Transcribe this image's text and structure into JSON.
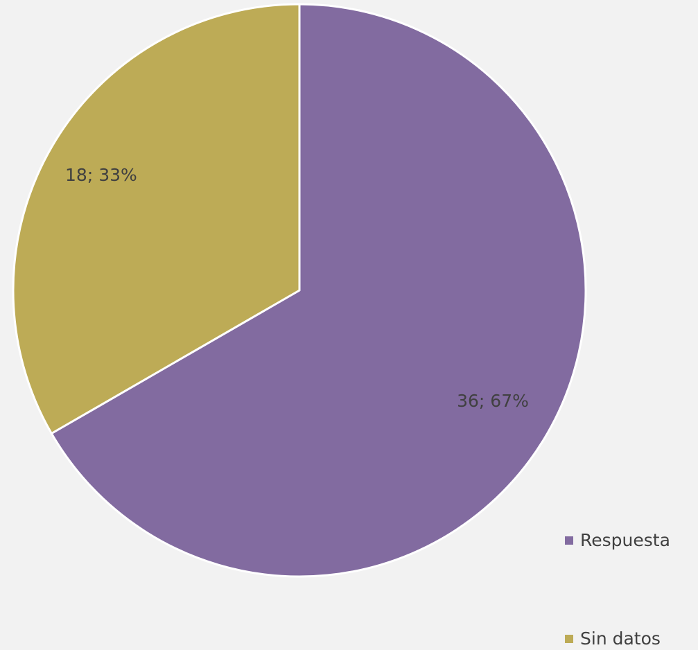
{
  "chart_data": {
    "type": "pie",
    "title": "",
    "categories": [
      "Respuesta",
      "Sin datos"
    ],
    "values": [
      36,
      18
    ],
    "percentages": [
      67,
      33
    ],
    "data_labels": [
      "36; 67%",
      "18; 33%"
    ],
    "colors": [
      "#826ba0",
      "#bdab56"
    ],
    "start_angle_deg": 0,
    "direction": "clockwise",
    "legend_position": "right-bottom"
  },
  "legend": {
    "items": [
      {
        "label": "Respuesta",
        "color": "#826ba0"
      },
      {
        "label": "Sin datos",
        "color": "#bdab56"
      }
    ]
  }
}
